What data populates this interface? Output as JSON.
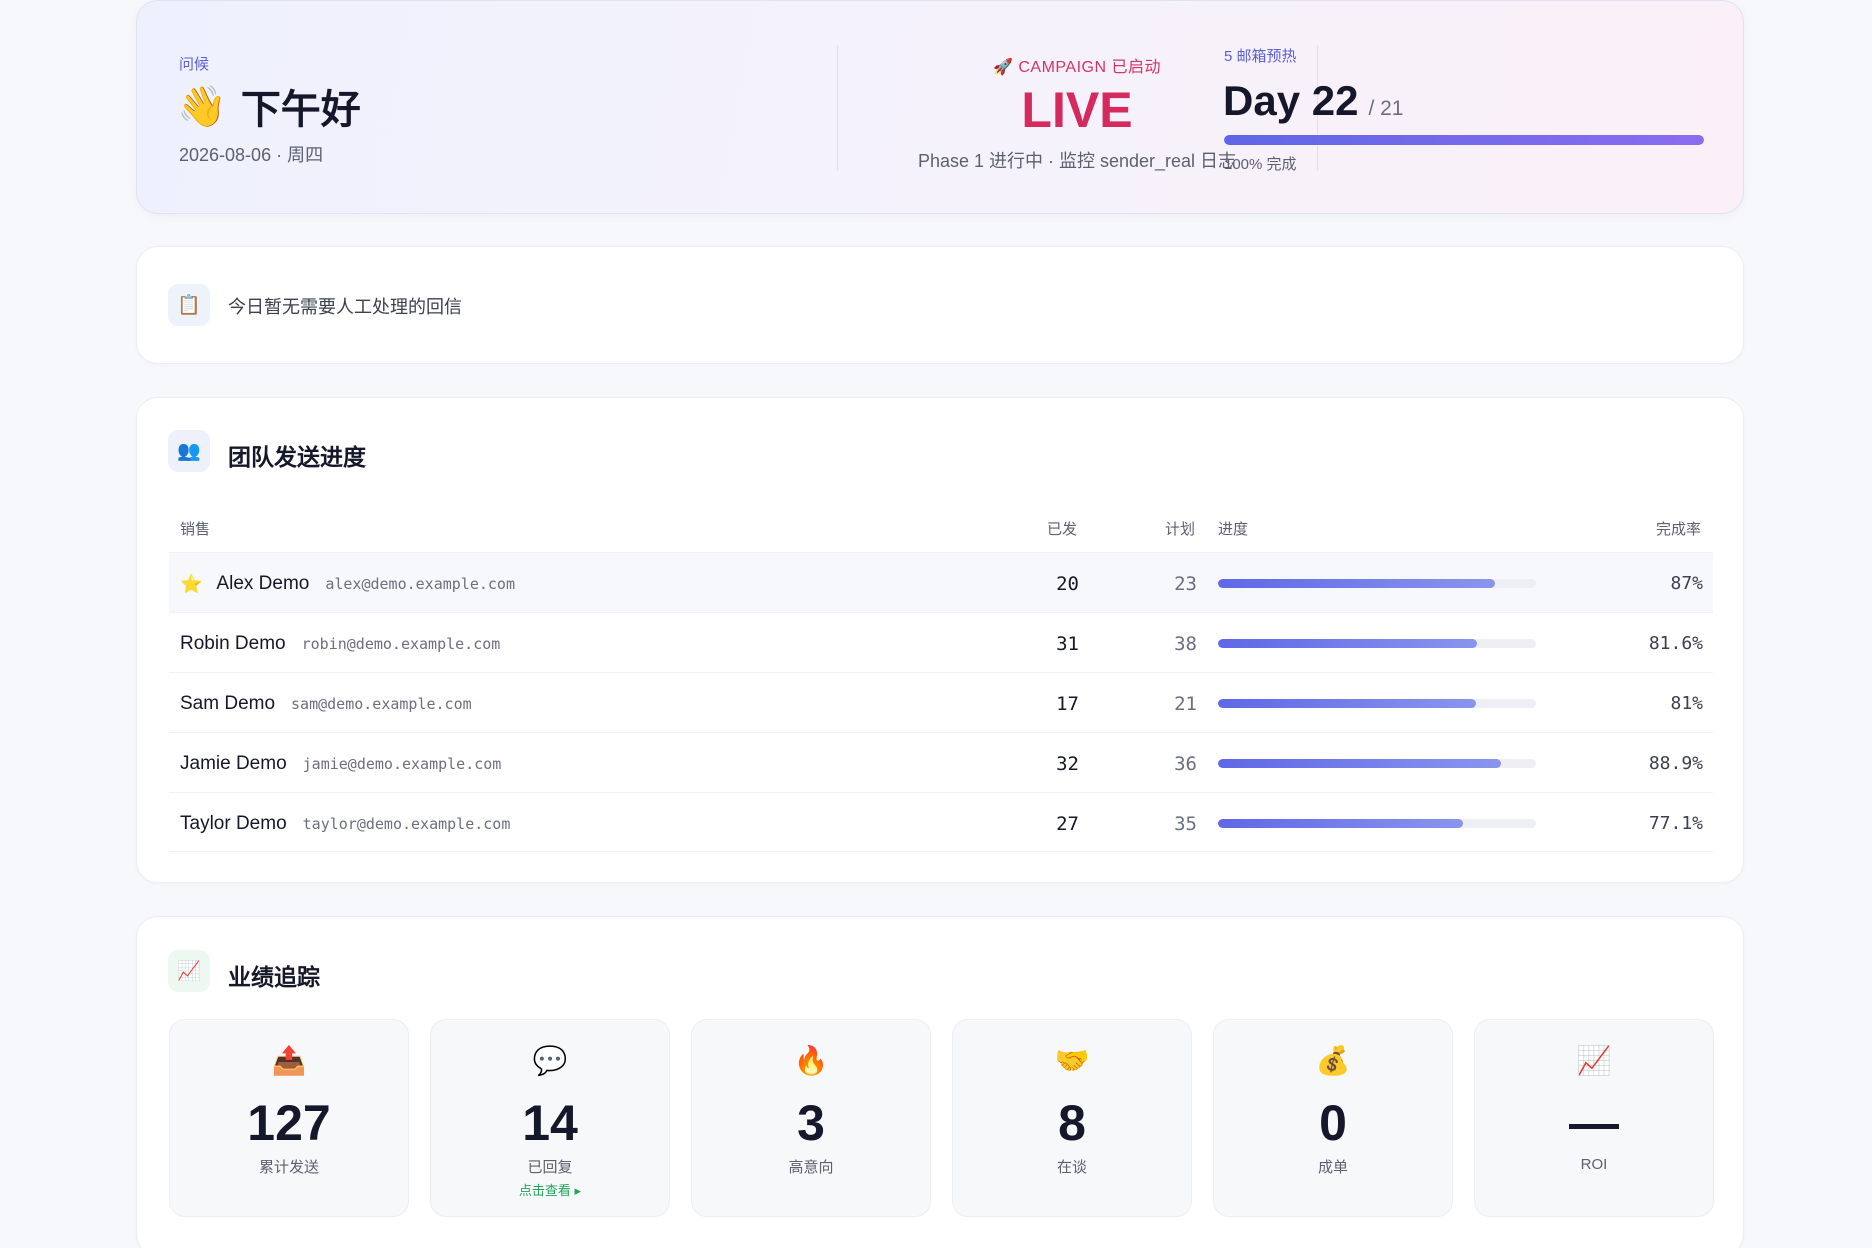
{
  "hero": {
    "greeting_label": "问候",
    "greeting_emoji": "👋",
    "greeting": "下午好",
    "date": "2026-08-06 · 周四",
    "campaign_emoji": "🚀",
    "campaign_label": "CAMPAIGN 已启动",
    "campaign_status": "LIVE",
    "campaign_sub": "Phase 1 进行中 · 监控 sender_real 日志",
    "warmup_label": "5 邮箱预热",
    "warmup_day": "Day 22",
    "warmup_total": "/ 21",
    "warmup_progress": 1.0,
    "warmup_pct_text": "100% 完成"
  },
  "notice": {
    "icon": "clipboard-icon",
    "icon_glyph": "📋",
    "text": "今日暂无需要人工处理的回信"
  },
  "team": {
    "icon_glyph": "👥",
    "title": "团队发送进度",
    "headers": {
      "seller": "销售",
      "sent": "已发",
      "plan": "计划",
      "progress": "进度",
      "rate": "完成率"
    },
    "rows": [
      {
        "star": "⭐",
        "name": "Alex Demo",
        "email": "alex@demo.example.com",
        "sent": "20",
        "plan": "23",
        "progress": 0.87,
        "rate": "87%"
      },
      {
        "star": "",
        "name": "Robin Demo",
        "email": "robin@demo.example.com",
        "sent": "31",
        "plan": "38",
        "progress": 0.816,
        "rate": "81.6%"
      },
      {
        "star": "",
        "name": "Sam Demo",
        "email": "sam@demo.example.com",
        "sent": "17",
        "plan": "21",
        "progress": 0.81,
        "rate": "81%"
      },
      {
        "star": "",
        "name": "Jamie Demo",
        "email": "jamie@demo.example.com",
        "sent": "32",
        "plan": "36",
        "progress": 0.889,
        "rate": "88.9%"
      },
      {
        "star": "",
        "name": "Taylor Demo",
        "email": "taylor@demo.example.com",
        "sent": "27",
        "plan": "35",
        "progress": 0.771,
        "rate": "77.1%"
      }
    ]
  },
  "performance": {
    "icon_glyph": "📈",
    "title": "业绩追踪",
    "metrics": [
      {
        "icon": "outbox-icon",
        "glyph": "📤",
        "value": "127",
        "label": "累计发送",
        "link": ""
      },
      {
        "icon": "speech-bubble-icon",
        "glyph": "💬",
        "value": "14",
        "label": "已回复",
        "link": "点击查看 ▸"
      },
      {
        "icon": "fire-icon",
        "glyph": "🔥",
        "value": "3",
        "label": "高意向",
        "link": ""
      },
      {
        "icon": "handshake-icon",
        "glyph": "🤝",
        "value": "8",
        "label": "在谈",
        "link": ""
      },
      {
        "icon": "money-bag-icon",
        "glyph": "💰",
        "value": "0",
        "label": "成单",
        "link": ""
      },
      {
        "icon": "chart-up-icon",
        "glyph": "📈",
        "value": "—",
        "label": "ROI",
        "link": ""
      }
    ]
  }
}
